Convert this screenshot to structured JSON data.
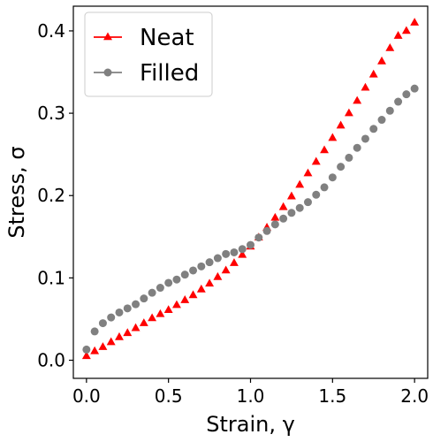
{
  "chart_data": {
    "type": "scatter",
    "title": "",
    "xlabel": "Strain, γ",
    "ylabel": "Stress, σ",
    "xlim": [
      -0.08,
      2.08
    ],
    "ylim": [
      -0.022,
      0.43
    ],
    "xticks": [
      0.0,
      0.5,
      1.0,
      1.5,
      2.0
    ],
    "xtick_labels": [
      "0.0",
      "0.5",
      "1.0",
      "1.5",
      "2.0"
    ],
    "yticks": [
      0.0,
      0.1,
      0.2,
      0.3,
      0.4
    ],
    "ytick_labels": [
      "0.0",
      "0.1",
      "0.2",
      "0.3",
      "0.4"
    ],
    "grid": false,
    "legend_position": "top-left",
    "series": [
      {
        "name": "Neat",
        "color": "#ff0000",
        "marker": "triangle",
        "x": [
          0.0,
          0.05,
          0.1,
          0.15,
          0.2,
          0.25,
          0.3,
          0.35,
          0.4,
          0.45,
          0.5,
          0.55,
          0.6,
          0.65,
          0.7,
          0.75,
          0.8,
          0.85,
          0.9,
          0.95,
          1.0,
          1.05,
          1.1,
          1.15,
          1.2,
          1.25,
          1.3,
          1.35,
          1.4,
          1.45,
          1.5,
          1.55,
          1.6,
          1.65,
          1.7,
          1.75,
          1.8,
          1.85,
          1.9,
          1.95,
          2.0
        ],
        "y": [
          0.005,
          0.011,
          0.016,
          0.022,
          0.028,
          0.033,
          0.039,
          0.045,
          0.051,
          0.056,
          0.061,
          0.067,
          0.073,
          0.079,
          0.086,
          0.093,
          0.101,
          0.109,
          0.118,
          0.128,
          0.138,
          0.149,
          0.161,
          0.173,
          0.186,
          0.199,
          0.213,
          0.227,
          0.241,
          0.255,
          0.27,
          0.285,
          0.3,
          0.315,
          0.331,
          0.347,
          0.363,
          0.379,
          0.394,
          0.4,
          0.41
        ]
      },
      {
        "name": "Filled",
        "color": "#808080",
        "marker": "circle",
        "x": [
          0.0,
          0.05,
          0.1,
          0.15,
          0.2,
          0.25,
          0.3,
          0.35,
          0.4,
          0.45,
          0.5,
          0.55,
          0.6,
          0.65,
          0.7,
          0.75,
          0.8,
          0.85,
          0.9,
          0.95,
          1.0,
          1.05,
          1.1,
          1.15,
          1.2,
          1.25,
          1.3,
          1.35,
          1.4,
          1.45,
          1.5,
          1.55,
          1.6,
          1.65,
          1.7,
          1.75,
          1.8,
          1.85,
          1.9,
          1.95,
          2.0
        ],
        "y": [
          0.013,
          0.035,
          0.045,
          0.052,
          0.058,
          0.063,
          0.068,
          0.075,
          0.082,
          0.088,
          0.094,
          0.098,
          0.104,
          0.109,
          0.114,
          0.119,
          0.124,
          0.129,
          0.131,
          0.135,
          0.14,
          0.149,
          0.157,
          0.165,
          0.172,
          0.179,
          0.185,
          0.192,
          0.201,
          0.21,
          0.222,
          0.235,
          0.246,
          0.258,
          0.269,
          0.281,
          0.292,
          0.303,
          0.314,
          0.323,
          0.33
        ]
      }
    ]
  }
}
